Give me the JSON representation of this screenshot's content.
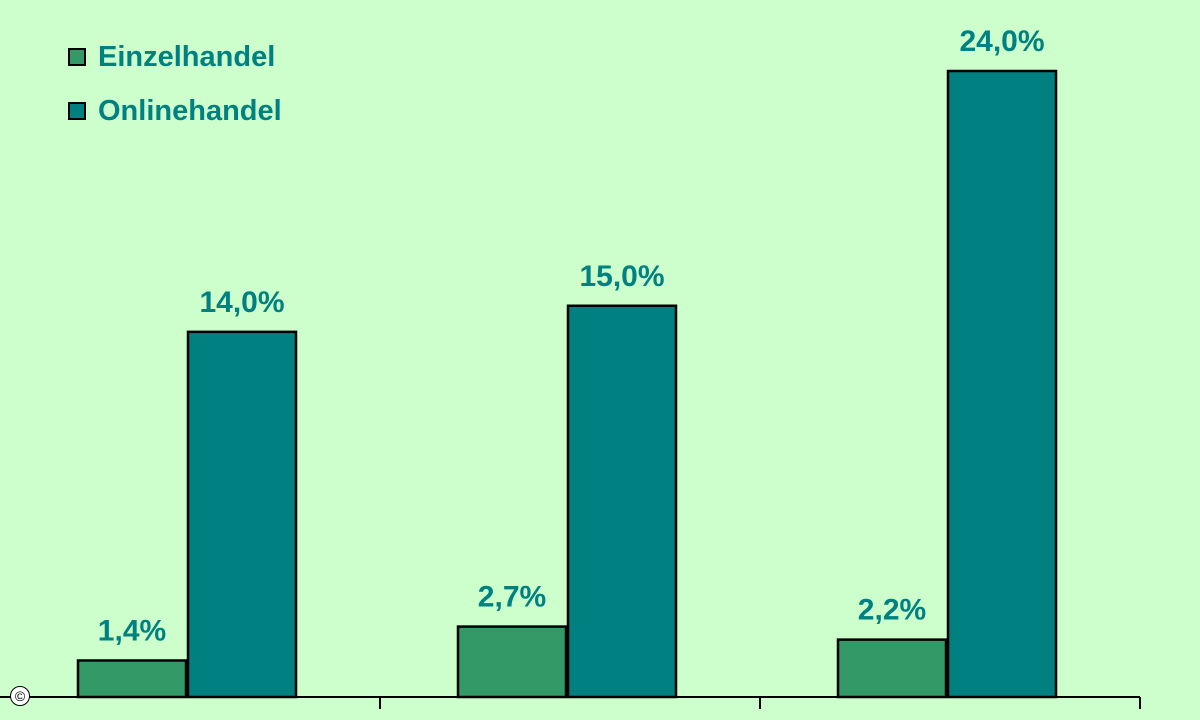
{
  "chart_data": {
    "type": "bar",
    "categories": [
      "",
      "",
      ""
    ],
    "series": [
      {
        "name": "Einzelhandel",
        "color": "#339966",
        "values": [
          1.4,
          2.7,
          2.2
        ],
        "labels": [
          "1,4%",
          "2,7%",
          "2,2%"
        ]
      },
      {
        "name": "Onlinehandel",
        "color": "#008080",
        "values": [
          14.0,
          15.0,
          24.0
        ],
        "labels": [
          "14,0%",
          "15,0%",
          "24,0%"
        ]
      }
    ],
    "title": "",
    "xlabel": "",
    "ylabel": "",
    "ylim": [
      0,
      24.0
    ],
    "grid": false,
    "legend_position": "top-left",
    "label_color": "#008080"
  },
  "copyright_mark": "©"
}
